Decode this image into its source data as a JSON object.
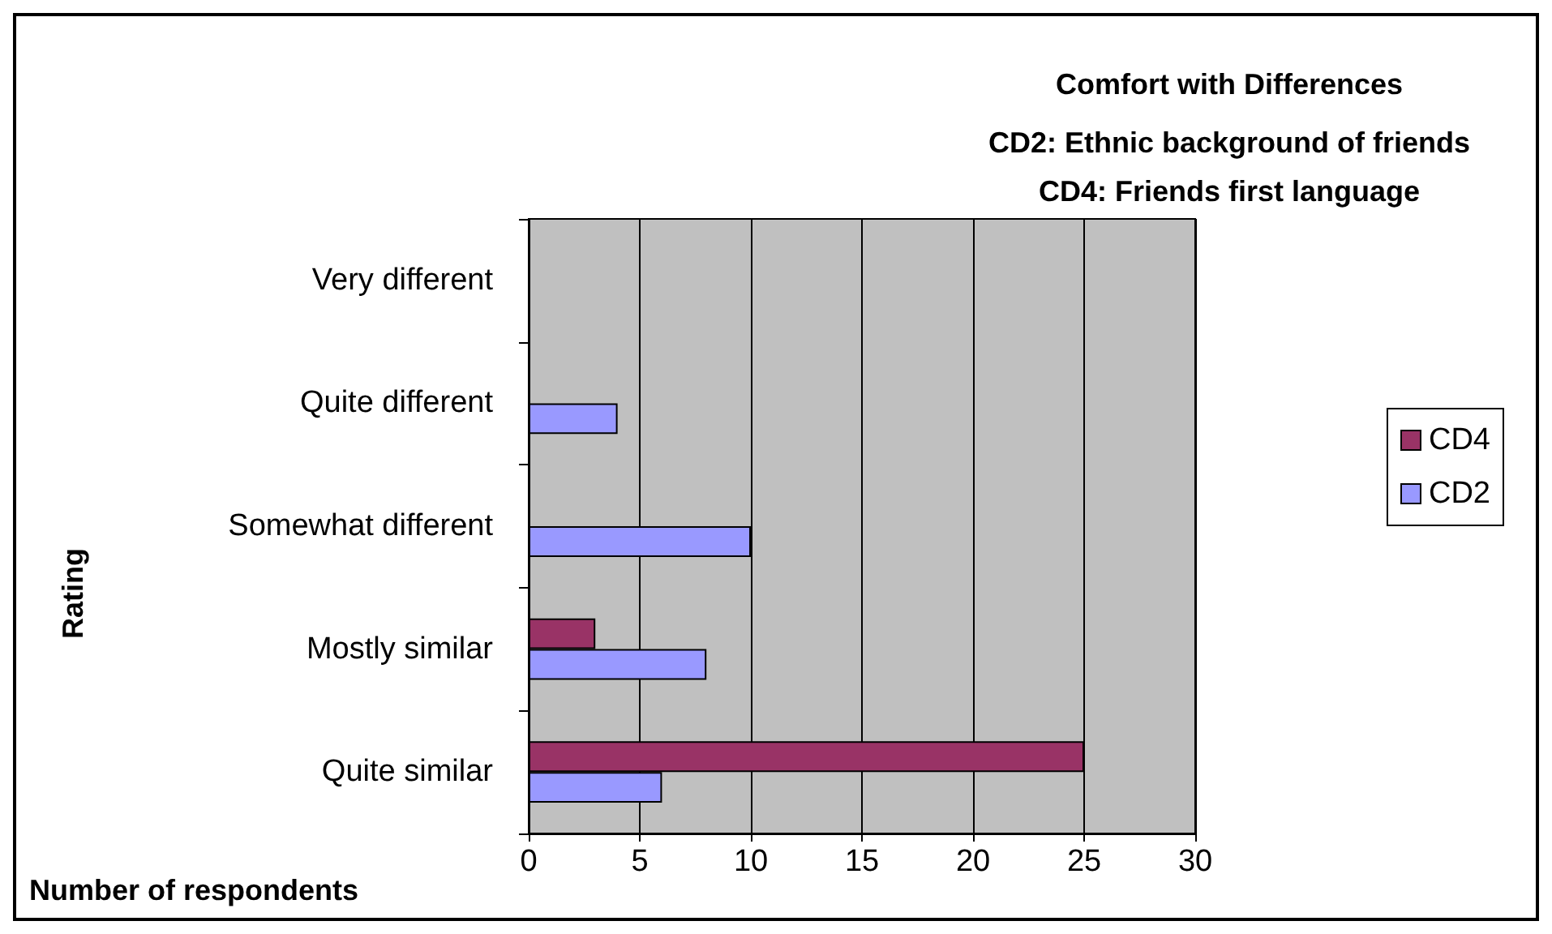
{
  "chart_data": {
    "type": "bar",
    "orientation": "horizontal",
    "title": "Comfort with Differences",
    "subtitle": "CD2: Ethnic background of friends\nCD4: Friends first language",
    "xlabel": "Number of respondents",
    "ylabel": "Rating",
    "categories": [
      "Very different",
      "Quite different",
      "Somewhat different",
      "Mostly similar",
      "Quite similar"
    ],
    "series": [
      {
        "name": "CD4",
        "color": "#993366",
        "values": [
          0,
          0,
          0,
          3,
          25
        ]
      },
      {
        "name": "CD2",
        "color": "#9999ff",
        "values": [
          0,
          4,
          10,
          8,
          6
        ]
      }
    ],
    "xlim": [
      0,
      30
    ],
    "xticks": [
      0,
      5,
      10,
      15,
      20,
      25,
      30
    ],
    "grid": "x",
    "legend": "right"
  }
}
